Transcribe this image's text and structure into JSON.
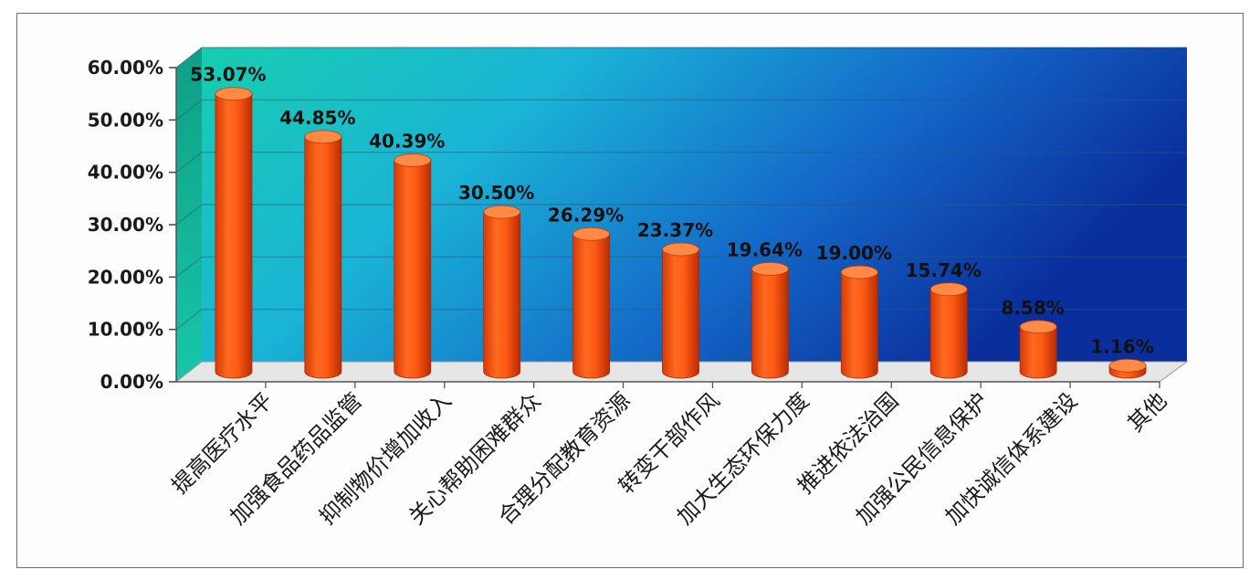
{
  "chart_data": {
    "type": "bar",
    "categories": [
      "提高医疗水平",
      "加强食品药品监管",
      "抑制物价增加收入",
      "关心帮助困难群众",
      "合理分配教育资源",
      "转变干部作风",
      "加大生态环保力度",
      "推进依法治国",
      "加强公民信息保护",
      "加快诚信体系建设",
      "其他"
    ],
    "values": [
      53.07,
      44.85,
      40.39,
      30.5,
      26.29,
      23.37,
      19.64,
      19.0,
      15.74,
      8.58,
      1.16
    ],
    "value_labels": [
      "53.07%",
      "44.85%",
      "40.39%",
      "30.50%",
      "26.29%",
      "23.37%",
      "19.64%",
      "19.00%",
      "15.74%",
      "8.58%",
      "1.16%"
    ],
    "ylim": [
      0,
      60
    ],
    "yticks": [
      "0.00%",
      "10.00%",
      "20.00%",
      "30.00%",
      "40.00%",
      "50.00%",
      "60.00%"
    ],
    "grid": true,
    "colors": {
      "bar": "#ff5a14",
      "bar_dark": "#c93205",
      "bar_top": "#ff8a45",
      "wall_left": "#13c9b4",
      "wall_mid": "#1aa4d8",
      "wall_right": "#0a3aa8",
      "floor": "#e7e7e7"
    }
  }
}
